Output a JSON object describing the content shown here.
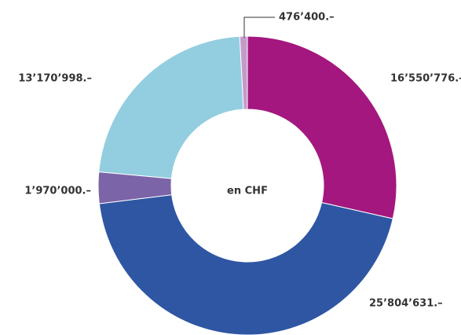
{
  "chart_data": {
    "type": "pie",
    "center_label": "en CHF",
    "values": [
      16550776,
      25804631,
      1970000,
      13170998,
      476400
    ],
    "value_labels": [
      "16’550’776.–",
      "25’804’631.–",
      "1’970’000.–",
      "13’170’998.–",
      "476’400.–"
    ],
    "colors": [
      "#a3177f",
      "#2e56a3",
      "#7b64a8",
      "#93cde0",
      "#c49bc8"
    ]
  }
}
